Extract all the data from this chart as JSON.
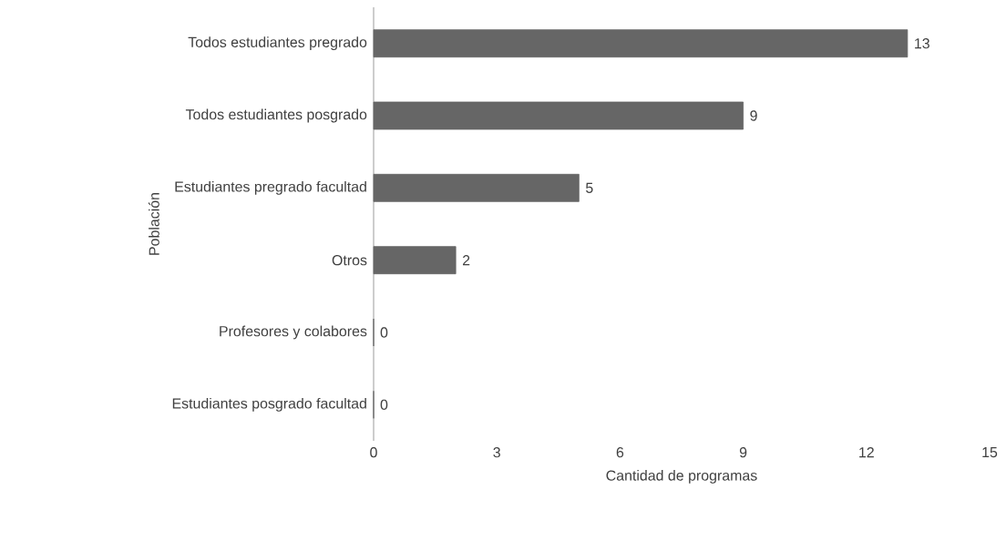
{
  "chart_data": {
    "type": "bar",
    "orientation": "horizontal",
    "categories": [
      "Todos estudiantes pregrado",
      "Todos estudiantes posgrado",
      "Estudiantes pregrado facultad",
      "Otros",
      "Profesores y colabores",
      "Estudiantes posgrado facultad"
    ],
    "values": [
      13,
      9,
      5,
      2,
      0,
      0
    ],
    "color": "#666666",
    "data_labels": true,
    "xlim": [
      0,
      15
    ],
    "xticks": [
      0,
      3,
      6,
      9,
      12,
      15
    ],
    "xlabel": "Cantidad de programas",
    "ylabel": "Población",
    "grid": false,
    "legend": false
  }
}
